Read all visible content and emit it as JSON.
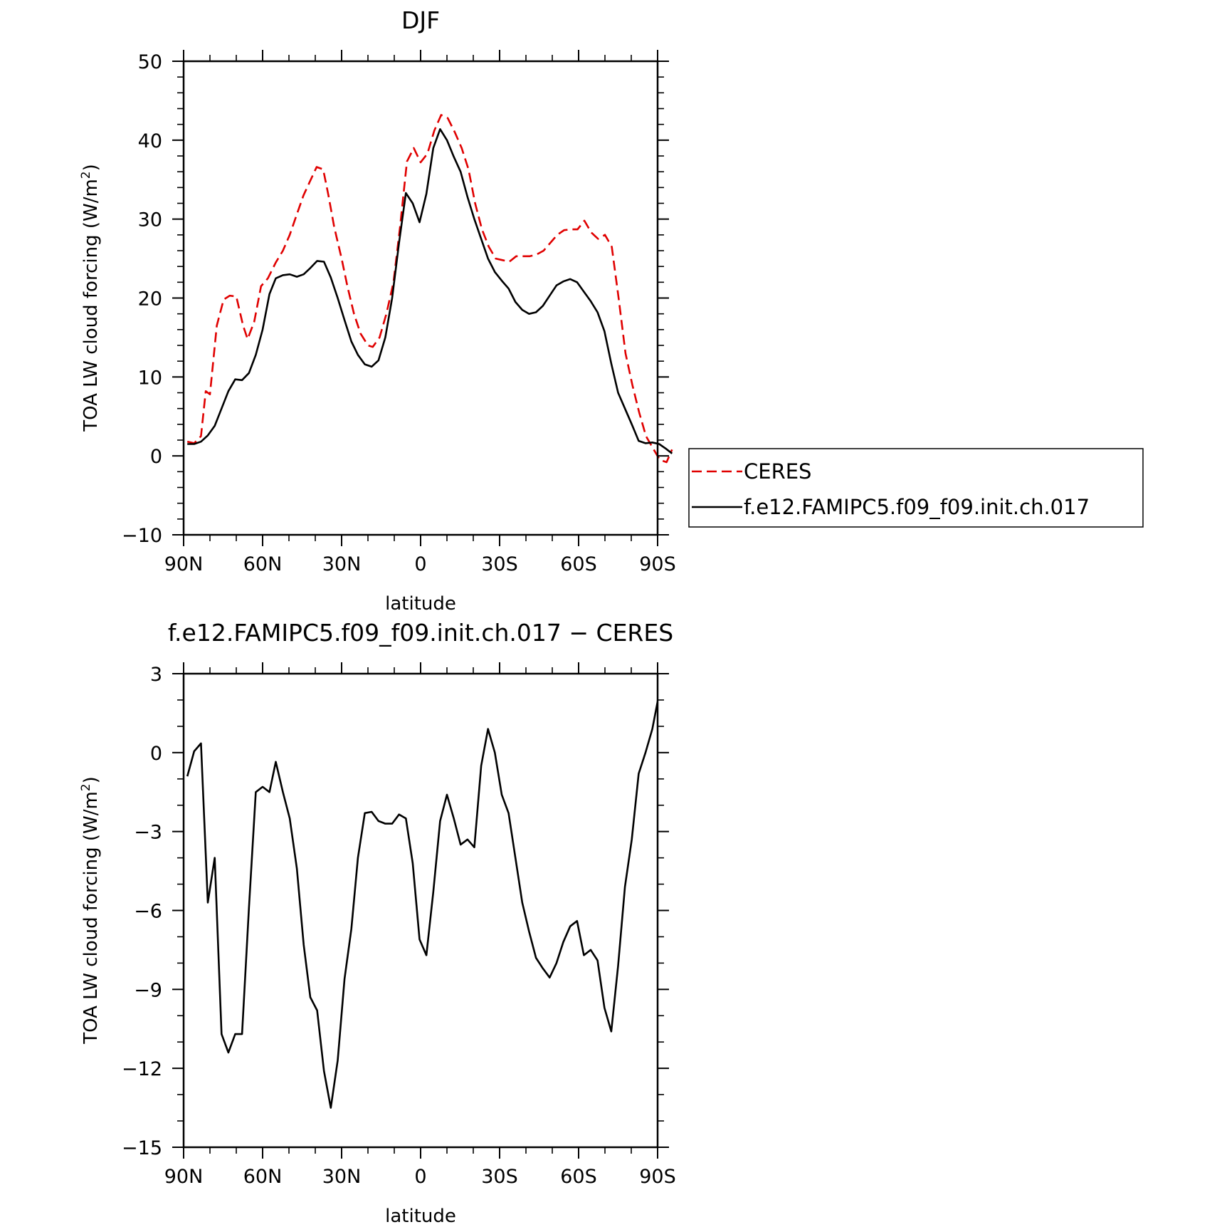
{
  "chart_data": [
    {
      "type": "line",
      "title": "DJF",
      "xlabel": "latitude",
      "ylabel": "TOA LW cloud forcing (W/m",
      "ylabel_sup": "2",
      "ylabel_close": ")",
      "xlim": [
        90,
        -90
      ],
      "ylim": [
        -10,
        50
      ],
      "xticks": [
        {
          "value": 90,
          "label": "90N"
        },
        {
          "value": 60,
          "label": "60N"
        },
        {
          "value": 30,
          "label": "30N"
        },
        {
          "value": 0,
          "label": "0"
        },
        {
          "value": -30,
          "label": "30S"
        },
        {
          "value": -60,
          "label": "60S"
        },
        {
          "value": -90,
          "label": "90S"
        }
      ],
      "yticks": [
        {
          "value": 50,
          "label": "50"
        },
        {
          "value": 40,
          "label": "40"
        },
        {
          "value": 30,
          "label": "30"
        },
        {
          "value": 20,
          "label": "20"
        },
        {
          "value": 10,
          "label": "10"
        },
        {
          "value": 0,
          "label": "0"
        },
        {
          "value": -10,
          "label": "−10"
        }
      ],
      "legend_position": "right",
      "series": [
        {
          "name": "CERES",
          "color": "#e00000",
          "dash": "dashed",
          "points": [
            [
              88.6,
              1.8
            ],
            [
              86,
              1.6
            ],
            [
              83.4,
              2.5
            ],
            [
              81.6,
              8.2
            ],
            [
              80,
              7.8
            ],
            [
              77.4,
              16.5
            ],
            [
              74.8,
              19.8
            ],
            [
              72.5,
              20.3
            ],
            [
              70,
              20.2
            ],
            [
              67.4,
              16.5
            ],
            [
              65.7,
              14.8
            ],
            [
              63.2,
              17
            ],
            [
              60.6,
              21.5
            ],
            [
              58,
              22.5
            ],
            [
              55,
              24.5
            ],
            [
              52.3,
              26
            ],
            [
              49.7,
              28
            ],
            [
              47.1,
              30.5
            ],
            [
              44.5,
              33
            ],
            [
              42,
              34.8
            ],
            [
              39.5,
              36.6
            ],
            [
              37,
              36.3
            ],
            [
              35,
              33
            ],
            [
              32.8,
              29
            ],
            [
              30,
              25
            ],
            [
              27.8,
              21.5
            ],
            [
              25.3,
              18
            ],
            [
              22.8,
              15.5
            ],
            [
              20,
              14
            ],
            [
              18.2,
              13.8
            ],
            [
              15.6,
              15
            ],
            [
              13,
              18
            ],
            [
              10.3,
              22
            ],
            [
              7.8,
              29
            ],
            [
              5.2,
              37.3
            ],
            [
              2.6,
              39
            ],
            [
              0,
              37.2
            ],
            [
              -2.6,
              38.3
            ],
            [
              -5.2,
              41.2
            ],
            [
              -7.8,
              43.2
            ],
            [
              -10.3,
              42.8
            ],
            [
              -13,
              41
            ],
            [
              -15.6,
              39
            ],
            [
              -18.2,
              36.3
            ],
            [
              -20.7,
              32
            ],
            [
              -23.3,
              28.7
            ],
            [
              -25.9,
              26.5
            ],
            [
              -28.5,
              25
            ],
            [
              -31.1,
              24.8
            ],
            [
              -33.7,
              24.6
            ],
            [
              -36.3,
              25.3
            ],
            [
              -39,
              25.3
            ],
            [
              -41.5,
              25.3
            ],
            [
              -44,
              25.5
            ],
            [
              -46.7,
              26
            ],
            [
              -49.3,
              27
            ],
            [
              -51.9,
              28
            ],
            [
              -54.5,
              28.6
            ],
            [
              -57,
              28.7
            ],
            [
              -59.6,
              28.7
            ],
            [
              -62.2,
              29.8
            ],
            [
              -64.8,
              28.3
            ],
            [
              -67.4,
              27.5
            ],
            [
              -70,
              28
            ],
            [
              -72.6,
              26.5
            ],
            [
              -75.2,
              20
            ],
            [
              -77.8,
              13
            ],
            [
              -80.4,
              9
            ],
            [
              -83,
              5.5
            ],
            [
              -85.6,
              2.5
            ],
            [
              -88.2,
              1
            ],
            [
              -90.8,
              -0.5
            ],
            [
              -93.4,
              -0.8
            ],
            [
              -95.5,
              0.8
            ]
          ]
        },
        {
          "name": "f.e12.FAMIPC5.f09_f09.init.ch.017",
          "color": "#000000",
          "dash": "solid",
          "points": [
            [
              88.6,
              1.5
            ],
            [
              86,
              1.5
            ],
            [
              83.4,
              1.8
            ],
            [
              80.8,
              2.6
            ],
            [
              78.2,
              3.8
            ],
            [
              75.6,
              6
            ],
            [
              73,
              8.2
            ],
            [
              70.4,
              9.7
            ],
            [
              67.8,
              9.6
            ],
            [
              65.2,
              10.5
            ],
            [
              62.6,
              12.8
            ],
            [
              60,
              16
            ],
            [
              57.4,
              20.5
            ],
            [
              55,
              22.5
            ],
            [
              52.3,
              22.9
            ],
            [
              49.7,
              23
            ],
            [
              47,
              22.7
            ],
            [
              44.4,
              23
            ],
            [
              41.9,
              23.8
            ],
            [
              39.3,
              24.7
            ],
            [
              36.7,
              24.6
            ],
            [
              34.1,
              22.6
            ],
            [
              31.5,
              20
            ],
            [
              28.9,
              17.2
            ],
            [
              26.3,
              14.5
            ],
            [
              23.8,
              12.8
            ],
            [
              21.2,
              11.6
            ],
            [
              18.6,
              11.3
            ],
            [
              16,
              12.1
            ],
            [
              13.4,
              15
            ],
            [
              10.8,
              20
            ],
            [
              8.2,
              27
            ],
            [
              5.6,
              33.3
            ],
            [
              3,
              32
            ],
            [
              0.4,
              29.6
            ],
            [
              -2.2,
              33.2
            ],
            [
              -4.8,
              39
            ],
            [
              -7.4,
              41.4
            ],
            [
              -10,
              40
            ],
            [
              -12.6,
              37.9
            ],
            [
              -15.2,
              36
            ],
            [
              -17.8,
              32.8
            ],
            [
              -20.4,
              30
            ],
            [
              -23,
              27.5
            ],
            [
              -25.6,
              25
            ],
            [
              -28.2,
              23.3
            ],
            [
              -30.8,
              22.2
            ],
            [
              -33.4,
              21.2
            ],
            [
              -36,
              19.5
            ],
            [
              -38.6,
              18.5
            ],
            [
              -41.2,
              18
            ],
            [
              -43.8,
              18.2
            ],
            [
              -46.4,
              19
            ],
            [
              -49,
              20.3
            ],
            [
              -51.6,
              21.6
            ],
            [
              -54.2,
              22.1
            ],
            [
              -56.8,
              22.4
            ],
            [
              -59.4,
              22
            ],
            [
              -62,
              20.8
            ],
            [
              -64.6,
              19.6
            ],
            [
              -67.2,
              18.2
            ],
            [
              -69.8,
              15.8
            ],
            [
              -72.4,
              11.7
            ],
            [
              -75,
              8
            ],
            [
              -77.6,
              6
            ],
            [
              -80.2,
              4
            ],
            [
              -82.8,
              1.9
            ],
            [
              -85.4,
              1.6
            ],
            [
              -88,
              1.7
            ],
            [
              -90.6,
              1.5
            ],
            [
              -93.2,
              0.9
            ],
            [
              -95.5,
              0.3
            ]
          ]
        }
      ]
    },
    {
      "type": "line",
      "title": "f.e12.FAMIPC5.f09_f09.init.ch.017 − CERES",
      "xlabel": "latitude",
      "ylabel": "TOA LW cloud forcing (W/m",
      "ylabel_sup": "2",
      "ylabel_close": ")",
      "xlim": [
        90,
        -90
      ],
      "ylim": [
        -15,
        3
      ],
      "xticks": [
        {
          "value": 90,
          "label": "90N"
        },
        {
          "value": 60,
          "label": "60N"
        },
        {
          "value": 30,
          "label": "30N"
        },
        {
          "value": 0,
          "label": "0"
        },
        {
          "value": -30,
          "label": "30S"
        },
        {
          "value": -60,
          "label": "60S"
        },
        {
          "value": -90,
          "label": "90S"
        }
      ],
      "yticks": [
        {
          "value": 3,
          "label": "3"
        },
        {
          "value": 0,
          "label": "0"
        },
        {
          "value": -3,
          "label": "−3"
        },
        {
          "value": -6,
          "label": "−6"
        },
        {
          "value": -9,
          "label": "−9"
        },
        {
          "value": -12,
          "label": "−12"
        },
        {
          "value": -15,
          "label": "−15"
        }
      ],
      "series": [
        {
          "color": "#000000",
          "dash": "solid",
          "points": [
            [
              88.6,
              -0.9
            ],
            [
              86,
              0.05
            ],
            [
              83.4,
              0.35
            ],
            [
              80.8,
              -5.7
            ],
            [
              78.2,
              -4
            ],
            [
              75.6,
              -10.7
            ],
            [
              73,
              -11.4
            ],
            [
              70.4,
              -10.7
            ],
            [
              67.8,
              -10.7
            ],
            [
              65.2,
              -5.9
            ],
            [
              62.6,
              -1.5
            ],
            [
              60,
              -1.3
            ],
            [
              57.4,
              -1.5
            ],
            [
              55,
              -0.35
            ],
            [
              52.3,
              -1.5
            ],
            [
              49.7,
              -2.5
            ],
            [
              47,
              -4.4
            ],
            [
              44.4,
              -7.3
            ],
            [
              41.9,
              -9.3
            ],
            [
              39.3,
              -9.8
            ],
            [
              36.7,
              -12.1
            ],
            [
              34.1,
              -13.5
            ],
            [
              31.5,
              -11.7
            ],
            [
              28.9,
              -8.6
            ],
            [
              26.3,
              -6.7
            ],
            [
              23.8,
              -4
            ],
            [
              21.2,
              -2.3
            ],
            [
              18.6,
              -2.25
            ],
            [
              16,
              -2.6
            ],
            [
              13.4,
              -2.7
            ],
            [
              10.8,
              -2.7
            ],
            [
              8.2,
              -2.35
            ],
            [
              5.6,
              -2.5
            ],
            [
              3,
              -4.2
            ],
            [
              0.4,
              -7.1
            ],
            [
              -2.2,
              -7.7
            ],
            [
              -4.8,
              -5.3
            ],
            [
              -7.4,
              -2.6
            ],
            [
              -10,
              -1.6
            ],
            [
              -12.6,
              -2.5
            ],
            [
              -15.2,
              -3.5
            ],
            [
              -17.8,
              -3.3
            ],
            [
              -20.4,
              -3.6
            ],
            [
              -23,
              -0.5
            ],
            [
              -25.6,
              0.9
            ],
            [
              -28.2,
              0
            ],
            [
              -30.8,
              -1.6
            ],
            [
              -33.4,
              -2.3
            ],
            [
              -36,
              -4
            ],
            [
              -38.6,
              -5.7
            ],
            [
              -41.2,
              -6.8
            ],
            [
              -43.8,
              -7.8
            ],
            [
              -46.4,
              -8.2
            ],
            [
              -49,
              -8.55
            ],
            [
              -51.6,
              -8
            ],
            [
              -54.2,
              -7.2
            ],
            [
              -56.8,
              -6.6
            ],
            [
              -59.4,
              -6.4
            ],
            [
              -62,
              -7.7
            ],
            [
              -64.6,
              -7.5
            ],
            [
              -67.2,
              -7.9
            ],
            [
              -69.8,
              -9.7
            ],
            [
              -72.4,
              -10.6
            ],
            [
              -75,
              -8.1
            ],
            [
              -77.6,
              -5.1
            ],
            [
              -80.2,
              -3.3
            ],
            [
              -82.8,
              -0.8
            ],
            [
              -85.4,
              0
            ],
            [
              -88,
              0.9
            ],
            [
              -90.6,
              2.25
            ],
            [
              -93.2,
              2.35
            ],
            [
              -95.5,
              -0.3
            ]
          ]
        }
      ]
    }
  ]
}
